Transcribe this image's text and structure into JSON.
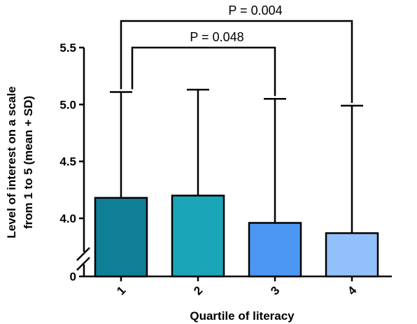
{
  "chart_data": {
    "type": "bar",
    "xlabel": "Quartile of literacy",
    "ylabel_lines": [
      "Level of interest on a scale",
      "from 1 to 5 (mean + SD)"
    ],
    "categories": [
      "1",
      "2",
      "3",
      "4"
    ],
    "values": [
      4.18,
      4.2,
      3.96,
      3.87
    ],
    "error_upper": [
      5.11,
      5.13,
      5.05,
      4.99
    ],
    "ylim": [
      3.75,
      5.5
    ],
    "axis_break": true,
    "yticks": [
      {
        "value": 0,
        "label": "0"
      },
      {
        "value": 4.0,
        "label": "4.0"
      },
      {
        "value": 4.5,
        "label": "4.5"
      },
      {
        "value": 5.0,
        "label": "5.0"
      },
      {
        "value": 5.5,
        "label": "5.5"
      }
    ],
    "bar_colors": [
      "#0e7f96",
      "#1aa5b8",
      "#4c97f4",
      "#92c0fa"
    ],
    "significance": [
      {
        "from": 0,
        "to": 2,
        "label": "P = 0.048"
      },
      {
        "from": 0,
        "to": 3,
        "label": "P = 0.004"
      }
    ]
  }
}
